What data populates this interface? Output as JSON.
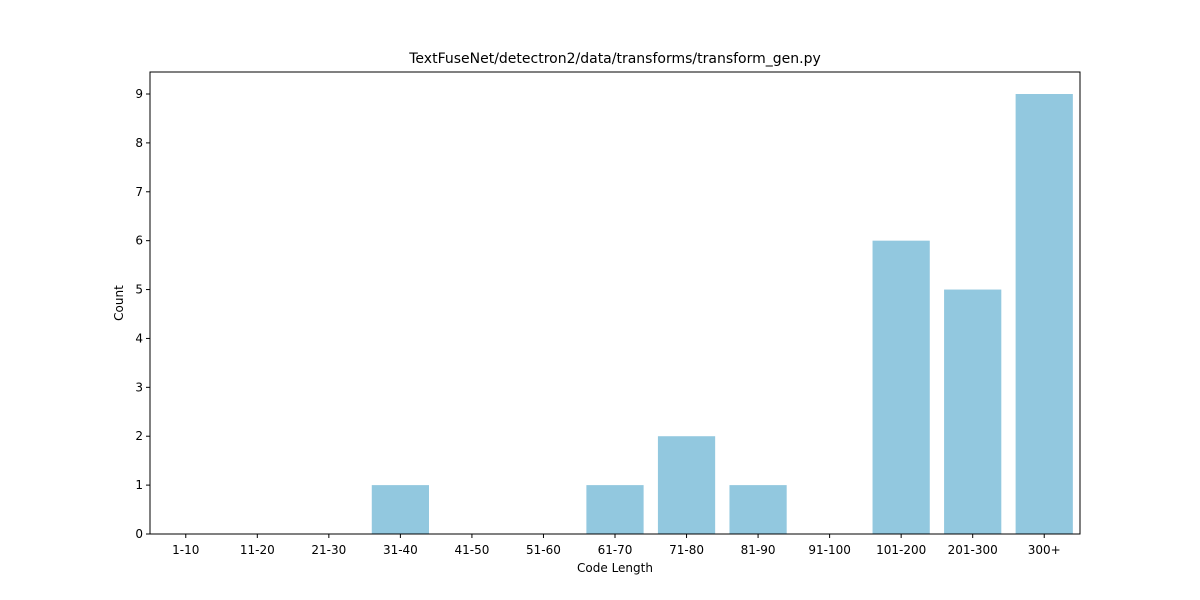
{
  "chart_data": {
    "type": "bar",
    "title": "TextFuseNet/detectron2/data/transforms/transform_gen.py",
    "xlabel": "Code Length",
    "ylabel": "Count",
    "categories": [
      "1-10",
      "11-20",
      "21-30",
      "31-40",
      "41-50",
      "51-60",
      "61-70",
      "71-80",
      "81-90",
      "91-100",
      "101-200",
      "201-300",
      "300+"
    ],
    "values": [
      0,
      0,
      0,
      1,
      0,
      0,
      1,
      2,
      1,
      0,
      6,
      5,
      9
    ],
    "ylim": [
      0,
      9.45
    ],
    "yticks": [
      "0",
      "1",
      "2",
      "3",
      "4",
      "5",
      "6",
      "7",
      "8",
      "9"
    ],
    "bar_color": "#92c8df",
    "grid": false,
    "legend": "none"
  }
}
